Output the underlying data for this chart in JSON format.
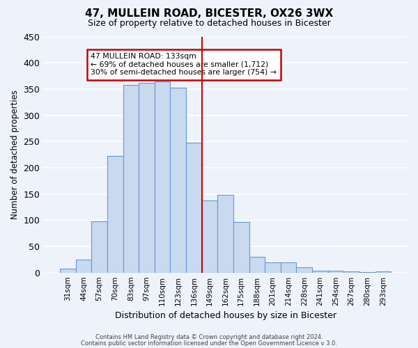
{
  "title": "47, MULLEIN ROAD, BICESTER, OX26 3WX",
  "subtitle": "Size of property relative to detached houses in Bicester",
  "xlabel": "Distribution of detached houses by size in Bicester",
  "ylabel": "Number of detached properties",
  "bar_labels": [
    "31sqm",
    "44sqm",
    "57sqm",
    "70sqm",
    "83sqm",
    "97sqm",
    "110sqm",
    "123sqm",
    "136sqm",
    "149sqm",
    "162sqm",
    "175sqm",
    "188sqm",
    "201sqm",
    "214sqm",
    "228sqm",
    "241sqm",
    "254sqm",
    "267sqm",
    "280sqm",
    "293sqm"
  ],
  "bar_heights": [
    8,
    25,
    98,
    222,
    358,
    362,
    365,
    352,
    248,
    138,
    148,
    96,
    30,
    20,
    20,
    10,
    4,
    3,
    2,
    1,
    2
  ],
  "bar_color": "#c8d9f0",
  "bar_edge_color": "#6699cc",
  "vline_pos": 8.5,
  "vline_color": "#cc0000",
  "ylim": [
    0,
    450
  ],
  "yticks": [
    0,
    50,
    100,
    150,
    200,
    250,
    300,
    350,
    400,
    450
  ],
  "annotation_title": "47 MULLEIN ROAD: 133sqm",
  "annotation_line1": "← 69% of detached houses are smaller (1,712)",
  "annotation_line2": "30% of semi-detached houses are larger (754) →",
  "annotation_box_color": "#cc0000",
  "footer1": "Contains HM Land Registry data © Crown copyright and database right 2024.",
  "footer2": "Contains public sector information licensed under the Open Government Licence v 3.0.",
  "background_color": "#eef2fb",
  "grid_color": "#ffffff"
}
